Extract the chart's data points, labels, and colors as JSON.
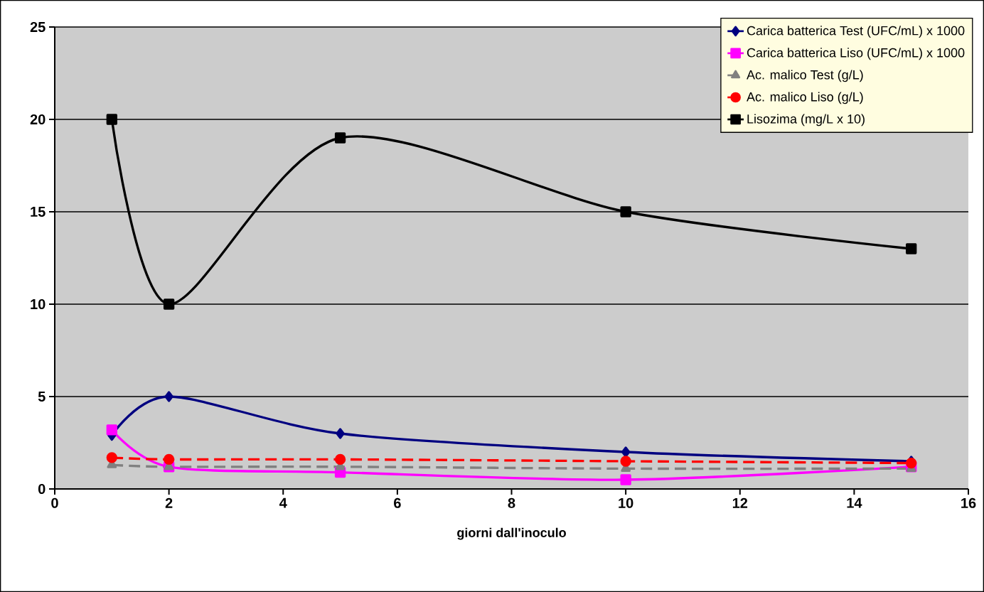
{
  "chart_data": {
    "type": "line",
    "xlabel": "giorni dall'inoculo",
    "x": [
      1,
      2,
      5,
      10,
      15
    ],
    "series": [
      {
        "name": "Carica batterica Test (UFC/mL) x 1000",
        "color": "#000080",
        "marker": "diamond",
        "line_style": "solid",
        "values": [
          2.9,
          5.0,
          3.0,
          2.0,
          1.5
        ]
      },
      {
        "name": "Carica batterica Liso (UFC/mL) x 1000",
        "color": "#ff00ff",
        "marker": "square",
        "line_style": "solid",
        "values": [
          3.2,
          1.2,
          0.9,
          0.5,
          1.2
        ]
      },
      {
        "name": "Ac. malico Test (g/L)",
        "color": "#808080",
        "marker": "triangle",
        "line_style": "dashed",
        "values": [
          1.3,
          1.2,
          1.2,
          1.1,
          1.1
        ]
      },
      {
        "name": "Ac. malico Liso (g/L)",
        "color": "#ff0000",
        "marker": "circle",
        "line_style": "dashed",
        "values": [
          1.7,
          1.6,
          1.6,
          1.5,
          1.4
        ]
      },
      {
        "name": "Lisozima (mg/L x 10)",
        "color": "#000000",
        "marker": "square",
        "line_style": "solid",
        "values": [
          20,
          10,
          19,
          15,
          13
        ]
      }
    ],
    "xlim": [
      0,
      16
    ],
    "xticks": [
      0,
      2,
      4,
      6,
      8,
      10,
      12,
      14,
      16
    ],
    "ylim": [
      0,
      25
    ],
    "yticks": [
      0,
      5,
      10,
      15,
      20,
      25
    ],
    "grid": "y",
    "legend": "top right"
  }
}
